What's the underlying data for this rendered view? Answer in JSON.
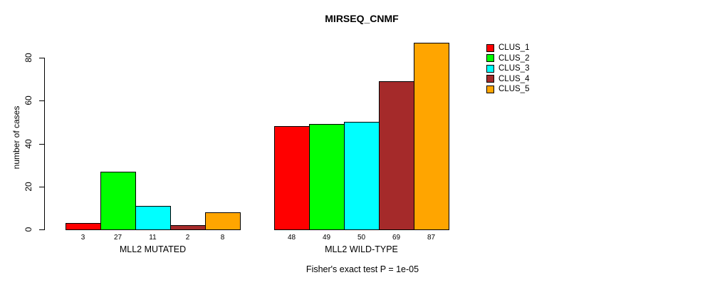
{
  "chart_data": {
    "type": "bar",
    "title": "MIRSEQ_CNMF",
    "ylabel": "number of cases",
    "xlabel": "",
    "categories": [
      "MLL2 MUTATED",
      "MLL2 WILD-TYPE"
    ],
    "series": [
      {
        "name": "CLUS_1",
        "color": "#ff0000",
        "values": [
          3,
          48
        ]
      },
      {
        "name": "CLUS_2",
        "color": "#00ff00",
        "values": [
          27,
          49
        ]
      },
      {
        "name": "CLUS_3",
        "color": "#00ffff",
        "values": [
          11,
          50
        ]
      },
      {
        "name": "CLUS_4",
        "color": "#a52a2a",
        "values": [
          2,
          69
        ]
      },
      {
        "name": "CLUS_5",
        "color": "#ffa500",
        "values": [
          8,
          87
        ]
      }
    ],
    "yticks": [
      0,
      20,
      40,
      60,
      80
    ],
    "ylim": [
      0,
      88
    ],
    "grid": false,
    "bar_borders": "#000000",
    "value_labels_shown": true,
    "legend_position": "right",
    "annotation": "Fisher's exact test P = 1e-05"
  }
}
